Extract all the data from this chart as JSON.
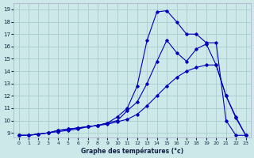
{
  "xlabel": "Graphe des températures (°c)",
  "background_color": "#cce8e8",
  "grid_color": "#aacccc",
  "line_color": "#0000bb",
  "xlim": [
    -0.5,
    23.5
  ],
  "ylim": [
    8.6,
    19.5
  ],
  "xticks": [
    0,
    1,
    2,
    3,
    4,
    5,
    6,
    7,
    8,
    9,
    10,
    11,
    12,
    13,
    14,
    15,
    16,
    17,
    18,
    19,
    20,
    21,
    22,
    23
  ],
  "yticks": [
    9,
    10,
    11,
    12,
    13,
    14,
    15,
    16,
    17,
    18,
    19
  ],
  "line1_x": [
    0,
    1,
    2,
    3,
    4,
    5,
    6,
    7,
    8,
    9,
    10,
    11,
    12,
    13,
    14,
    15,
    16,
    17,
    18,
    19,
    20,
    21,
    22,
    23
  ],
  "line1_y": [
    8.8,
    8.8,
    8.9,
    9.0,
    9.2,
    9.3,
    9.4,
    9.5,
    9.6,
    9.8,
    10.3,
    11.0,
    12.8,
    16.5,
    18.8,
    18.9,
    18.0,
    17.0,
    17.0,
    16.3,
    16.3,
    10.0,
    8.8,
    8.8
  ],
  "line2_x": [
    0,
    1,
    2,
    3,
    4,
    5,
    6,
    7,
    8,
    9,
    10,
    11,
    12,
    13,
    14,
    15,
    16,
    17,
    18,
    19,
    20,
    21,
    22,
    23
  ],
  "line2_y": [
    8.8,
    8.8,
    8.9,
    9.0,
    9.2,
    9.3,
    9.4,
    9.5,
    9.6,
    9.8,
    10.0,
    10.8,
    11.5,
    13.0,
    14.8,
    16.5,
    15.5,
    14.8,
    15.8,
    16.2,
    14.5,
    12.0,
    10.3,
    8.8
  ],
  "line3_x": [
    0,
    1,
    2,
    3,
    4,
    5,
    6,
    7,
    8,
    9,
    10,
    11,
    12,
    13,
    14,
    15,
    16,
    17,
    18,
    19,
    20,
    21,
    22,
    23
  ],
  "line3_y": [
    8.8,
    8.8,
    8.9,
    9.0,
    9.1,
    9.2,
    9.3,
    9.5,
    9.6,
    9.7,
    9.9,
    10.1,
    10.5,
    11.2,
    12.0,
    12.8,
    13.5,
    14.0,
    14.3,
    14.5,
    14.5,
    12.0,
    10.2,
    8.8
  ]
}
